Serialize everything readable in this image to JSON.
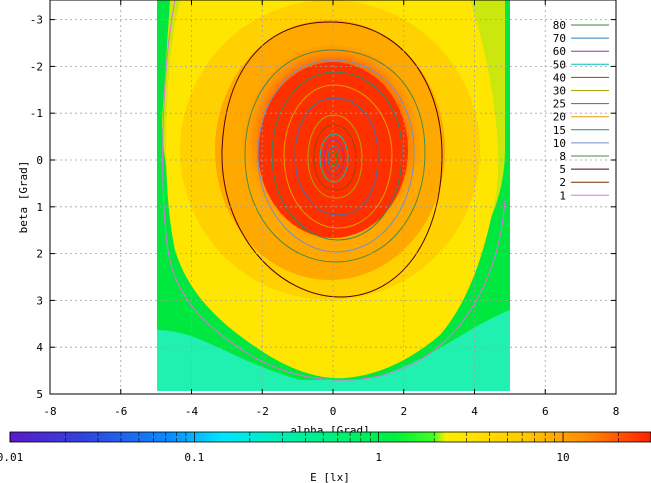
{
  "chart_data": {
    "type": "heatmap",
    "title": "",
    "xlabel": "alpha [Grad]",
    "ylabel": "beta [Grad]",
    "xlim": [
      -8,
      8
    ],
    "ylim": [
      -3.4,
      5
    ],
    "x_ticks": [
      -8,
      -6,
      -4,
      -2,
      0,
      2,
      4,
      6,
      8
    ],
    "y_ticks": [
      -3,
      -2,
      -1,
      0,
      1,
      2,
      3,
      4,
      5
    ],
    "grid": true,
    "data_extent_x": [
      -5,
      5
    ],
    "data_extent_y": [
      -3.4,
      5
    ],
    "peak_position": [
      0,
      0
    ],
    "contour_levels": [
      {
        "label": "80",
        "value": 80,
        "color": "#2e8b3d"
      },
      {
        "label": "70",
        "value": 70,
        "color": "#2a7fc0"
      },
      {
        "label": "60",
        "value": 60,
        "color": "#9c2fa6"
      },
      {
        "label": "50",
        "value": 50,
        "color": "#00bfbf"
      },
      {
        "label": "40",
        "value": 40,
        "color": "#a04000"
      },
      {
        "label": "30",
        "value": 30,
        "color": "#a8a800"
      },
      {
        "label": "25",
        "value": 25,
        "color": "#3a6fb0"
      },
      {
        "label": "20",
        "value": 20,
        "color": "#e0a000"
      },
      {
        "label": "15",
        "value": 15,
        "color": "#2a8a6a"
      },
      {
        "label": "10",
        "value": 10,
        "color": "#7090d0"
      },
      {
        "label": "8",
        "value": 8,
        "color": "#4a8a4a"
      },
      {
        "label": "5",
        "value": 5,
        "color": "#500000"
      },
      {
        "label": "2",
        "value": 2,
        "color": "#703000"
      },
      {
        "label": "1",
        "value": 1,
        "color": "#e070e0"
      }
    ],
    "colorbar": {
      "label": "E [lx]",
      "scale": "log",
      "range": [
        0.01,
        30
      ],
      "tick_labels": [
        {
          "label": "0.01",
          "value": 0.01
        },
        {
          "label": "0.1",
          "value": 0.1
        },
        {
          "label": "1",
          "value": 1
        },
        {
          "label": "10",
          "value": 10
        }
      ]
    }
  }
}
